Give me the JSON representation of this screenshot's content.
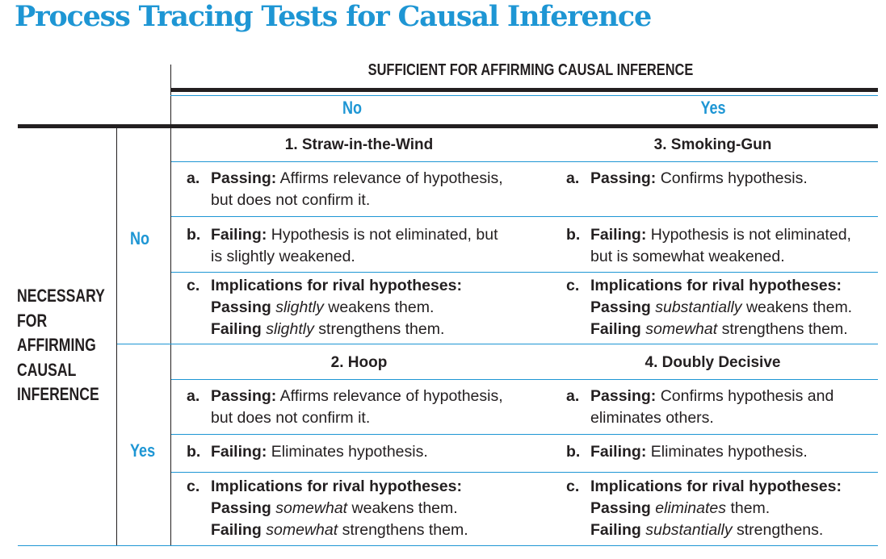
{
  "title": "Process Tracing Tests for Causal Inference",
  "header": {
    "sufficient": "SUFFICIENT FOR AFFIRMING CAUSAL INFERENCE",
    "col_no": "No",
    "col_yes": "Yes",
    "row_no": "No",
    "row_yes": "Yes",
    "necessary": [
      "NECESSARY",
      "FOR",
      "AFFIRMING",
      "CAUSAL",
      "INFERENCE"
    ]
  },
  "labels": {
    "a": "a.",
    "b": "b.",
    "c": "c.",
    "passing": "Passing:",
    "failing": "Failing:",
    "implications": "Implications for rival hypotheses:",
    "passing_word": "Passing",
    "failing_word": "Failing"
  },
  "tests": {
    "t1": {
      "name": "1.  Straw-in-the-Wind",
      "a1": "Affirms relevance of hypothesis,",
      "a2": "but does not confirm it.",
      "b1": "Hypothesis is not eliminated, but",
      "b2": "is slightly weakened.",
      "c_pass_em": "slightly",
      "c_pass_rest": "weakens them.",
      "c_fail_em": "slightly",
      "c_fail_rest": "strengthens them."
    },
    "t2": {
      "name": "2.  Hoop",
      "a1": "Affirms relevance of hypothesis,",
      "a2": "but does not confirm it.",
      "b1": "Eliminates hypothesis.",
      "c_pass_em": "somewhat",
      "c_pass_rest": "weakens them.",
      "c_fail_em": "somewhat",
      "c_fail_rest": "strengthens them."
    },
    "t3": {
      "name": "3.  Smoking-Gun",
      "a1": "Confirms hypothesis.",
      "b1": "Hypothesis is not eliminated,",
      "b2": "but is somewhat weakened.",
      "c_pass_em": "substantially",
      "c_pass_rest": "weakens them.",
      "c_fail_em": "somewhat",
      "c_fail_rest": "strengthens them."
    },
    "t4": {
      "name": "4.  Doubly Decisive",
      "a1": "Confirms hypothesis and",
      "a2": "eliminates others.",
      "b1": "Eliminates hypothesis.",
      "c_pass_em": "eliminates",
      "c_pass_rest": "them.",
      "c_fail_em": "substantially",
      "c_fail_rest": "strengthens."
    }
  },
  "colors": {
    "accent": "#1e96d4",
    "text": "#231f20",
    "rule": "#231f20"
  }
}
